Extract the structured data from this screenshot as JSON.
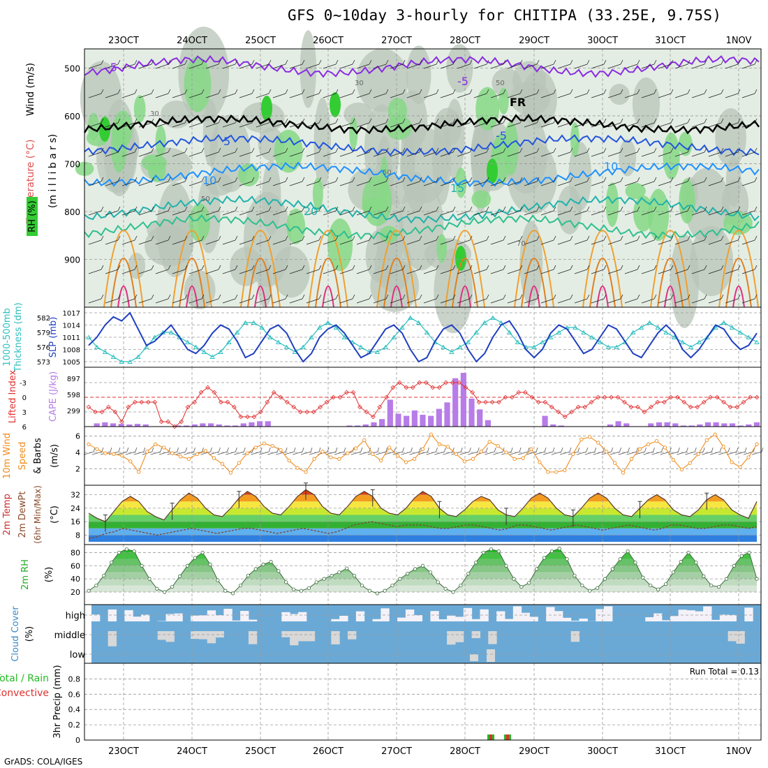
{
  "header": {
    "title": "GFS 0~10day 3-hourly for CHITIPA (33.25E, 9.75S)",
    "credit": "GrADS: COLA/IGES"
  },
  "colors": {
    "rh_green": "#33cc33",
    "rh_gray": "#a8b8a8",
    "slp": "#1f3fbf",
    "thickness": "#2fbfbf",
    "lifted_index": "#e03030",
    "cape": "#b77ce8",
    "wind_speed": "#f08c1a",
    "cloud_blue": "#6aa9d6",
    "cloud_white": "#f4f2f8",
    "cloud_gray": "#d8d8d8",
    "precip_total": "#22bb22",
    "precip_conv": "#e03030"
  },
  "chart_data": [
    {
      "id": "upper-air",
      "type": "heatmap",
      "ylabels": [
        "Temperature (°C)",
        "Wind (m/s)",
        "(m i l l i b a r s)",
        "RH (%)"
      ],
      "x_ticks": [
        "23OCT",
        "24OCT",
        "25OCT",
        "26OCT",
        "27OCT",
        "28OCT",
        "29OCT",
        "30OCT",
        "31OCT",
        "1NOV"
      ],
      "y_ticks": [
        500,
        600,
        700,
        800,
        900
      ],
      "ylim": [
        1000,
        460
      ],
      "contour_labels": [
        "-5",
        "-5",
        "5",
        "-5",
        "10",
        "10",
        "15",
        "20",
        "FR"
      ],
      "rh_labels": [
        "30",
        "30",
        "50",
        "50",
        "50",
        "70"
      ],
      "grid": true
    },
    {
      "id": "slp-thickness",
      "type": "line",
      "ylabels": [
        "1000-500mb",
        "Thickness (dm)",
        "SLP (mb)"
      ],
      "left_ticks": [
        573,
        576,
        579,
        582
      ],
      "right_ticks": [
        1005,
        1008,
        1011,
        1014,
        1017
      ],
      "series": [
        {
          "name": "SLP (mb)",
          "values": [
            1009,
            1011,
            1014,
            1016,
            1015,
            1017,
            1013,
            1009,
            1010,
            1012,
            1014,
            1011,
            1008,
            1007,
            1009,
            1012,
            1014,
            1013,
            1010,
            1006,
            1007,
            1010,
            1013,
            1014,
            1012,
            1008,
            1005,
            1007,
            1011,
            1013,
            1014,
            1012,
            1009,
            1006,
            1007,
            1010,
            1013,
            1014,
            1012,
            1008,
            1005,
            1006,
            1010,
            1013,
            1014,
            1012,
            1008,
            1005,
            1007,
            1011,
            1014,
            1015,
            1012,
            1008,
            1006,
            1008,
            1012,
            1014,
            1013,
            1010,
            1007,
            1008,
            1011,
            1014,
            1013,
            1010,
            1007,
            1006,
            1009,
            1012,
            1014,
            1012,
            1008,
            1006,
            1008,
            1011,
            1014,
            1013,
            1010,
            1008,
            1009,
            1012
          ]
        },
        {
          "name": "Thickness (dm)",
          "values": [
            578,
            576,
            575,
            574,
            573,
            573,
            574,
            576,
            578,
            579,
            579,
            578,
            577,
            576,
            575,
            574,
            575,
            577,
            579,
            581,
            581,
            580,
            578,
            577,
            576,
            575,
            576,
            578,
            580,
            581,
            580,
            578,
            577,
            576,
            575,
            575,
            576,
            578,
            580,
            582,
            581,
            579,
            577,
            576,
            575,
            576,
            577,
            579,
            581,
            582,
            581,
            579,
            577,
            576,
            576,
            577,
            578,
            579,
            580,
            580,
            579,
            578,
            577,
            576,
            576,
            577,
            579,
            580,
            581,
            580,
            579,
            578,
            577,
            576,
            577,
            578,
            580,
            581,
            580,
            579,
            578,
            577
          ]
        }
      ]
    },
    {
      "id": "lifted-index-cape",
      "type": "bar",
      "ylabels": [
        "Lifted Index",
        "CAPE (J/kg)"
      ],
      "left_ticks": [
        "-3",
        "0",
        "3",
        "6"
      ],
      "right_ticks": [
        299,
        598,
        897
      ],
      "series": [
        {
          "name": "Lifted Index",
          "values": [
            2,
            3,
            3,
            2,
            3,
            5,
            2,
            1,
            1,
            1,
            1,
            5,
            5,
            6,
            5,
            2,
            1,
            -1,
            -2,
            -1,
            1,
            1,
            2,
            4,
            4,
            4,
            3,
            1,
            -1,
            0,
            1,
            2,
            3,
            3,
            3,
            2,
            1,
            0,
            0,
            -1,
            -1,
            2,
            3,
            4,
            2,
            0,
            -2,
            -3,
            -2,
            -2,
            -3,
            -3,
            -2,
            -2,
            -3,
            -3,
            -3,
            -2,
            -1,
            1,
            1,
            1,
            1,
            0,
            0,
            -1,
            -1,
            0,
            1,
            1,
            2,
            3,
            4,
            3,
            2,
            2,
            1,
            0,
            0,
            0,
            0,
            1,
            2,
            2,
            3,
            2,
            1,
            1,
            0,
            0,
            1,
            2,
            2,
            1,
            0,
            0,
            1,
            2,
            2,
            1,
            0,
            0
          ]
        },
        {
          "name": "CAPE (J/kg)",
          "values": [
            0,
            60,
            80,
            60,
            50,
            40,
            50,
            40,
            0,
            0,
            0,
            20,
            20,
            40,
            60,
            60,
            40,
            20,
            20,
            60,
            80,
            100,
            100,
            0,
            0,
            0,
            0,
            0,
            0,
            0,
            0,
            0,
            20,
            20,
            40,
            80,
            140,
            500,
            240,
            200,
            300,
            220,
            200,
            330,
            450,
            900,
            1000,
            520,
            320,
            120,
            0,
            0,
            0,
            0,
            0,
            0,
            200,
            40,
            20,
            0,
            0,
            0,
            0,
            0,
            40,
            100,
            60,
            0,
            0,
            60,
            80,
            80,
            60,
            20,
            20,
            40,
            80,
            80,
            60,
            60,
            20,
            40,
            80
          ]
        }
      ]
    },
    {
      "id": "wind-10m",
      "type": "line",
      "ylabels": [
        "10m Wind",
        "Speed",
        "& Barbs",
        "(m/s)"
      ],
      "left_ticks": [
        2,
        4,
        6
      ],
      "series": [
        {
          "name": "Speed",
          "values": [
            5,
            4.4,
            3.9,
            3.8,
            3.6,
            2.9,
            1.6,
            4.1,
            5,
            4.6,
            3.9,
            3.5,
            3.2,
            3.8,
            4.2,
            3.3,
            2.6,
            1.5,
            2.7,
            3.9,
            4.6,
            5.1,
            4.8,
            4.3,
            3,
            2.1,
            1.6,
            3.2,
            4.1,
            3.4,
            3.2,
            3.9,
            4.5,
            5.5,
            3.8,
            3,
            4.6,
            3.6,
            2.8,
            3.2,
            4.4,
            6.2,
            5,
            4.7,
            3.8,
            2.9,
            3.2,
            4.1,
            5.3,
            4.8,
            4,
            3.2,
            3.3,
            4.4,
            2.8,
            1.6,
            1.6,
            1.8,
            3.8,
            5.6,
            5.9,
            5.2,
            4.1,
            2.7,
            1.5,
            3.2,
            4.4,
            5,
            5.4,
            4.6,
            3.1,
            1.9,
            2.7,
            3.8,
            5.5,
            6.2,
            4.7,
            2.8,
            2.2,
            3.4,
            5
          ]
        }
      ]
    },
    {
      "id": "temp-2m",
      "type": "area",
      "ylabels": [
        "2m Temp",
        "2m DewPt",
        "(6hr Min/Max)",
        "(°C)"
      ],
      "left_ticks": [
        8,
        16,
        24,
        32
      ],
      "series": [
        {
          "name": "2m Temp",
          "values": [
            21,
            18,
            16,
            22,
            28,
            31,
            28,
            22,
            19,
            17,
            23,
            29,
            33,
            30,
            24,
            20,
            19,
            24,
            30,
            34,
            31,
            25,
            21,
            20,
            25,
            31,
            35,
            32,
            25,
            21,
            20,
            25,
            31,
            34,
            31,
            24,
            21,
            20,
            24,
            30,
            34,
            31,
            24,
            20,
            19,
            23,
            28,
            31,
            29,
            23,
            20,
            19,
            24,
            30,
            33,
            30,
            24,
            20,
            19,
            24,
            30,
            33,
            30,
            24,
            20,
            19,
            24,
            29,
            32,
            29,
            23,
            20,
            19,
            23,
            29,
            32,
            29,
            23,
            20,
            18,
            28
          ]
        },
        {
          "name": "2m DewPt",
          "values": [
            6,
            7,
            9,
            10,
            12,
            11,
            10,
            9,
            8,
            9,
            10,
            11,
            12,
            11,
            10,
            9,
            10,
            11,
            12,
            12,
            11,
            10,
            9,
            10,
            11,
            12,
            11,
            10,
            9,
            10,
            12,
            14,
            15,
            16,
            15,
            14,
            13,
            14,
            14,
            14,
            13,
            12,
            12,
            13,
            14,
            14,
            13,
            12,
            11,
            12,
            14,
            14,
            13,
            12,
            11,
            12,
            13,
            14,
            13,
            12,
            11,
            12,
            13,
            14,
            13,
            12,
            11,
            12,
            14,
            14,
            13,
            12,
            12,
            13,
            14,
            14,
            13,
            12,
            13
          ]
        }
      ]
    },
    {
      "id": "rh-2m",
      "type": "area",
      "ylabels": [
        "2m RH",
        "(%)"
      ],
      "left_ticks": [
        20,
        40,
        60,
        80
      ],
      "series": [
        {
          "name": "2m RH",
          "values": [
            22,
            30,
            45,
            65,
            80,
            85,
            82,
            60,
            40,
            25,
            20,
            28,
            44,
            60,
            72,
            80,
            62,
            38,
            22,
            18,
            30,
            45,
            55,
            62,
            66,
            52,
            35,
            24,
            22,
            26,
            35,
            40,
            45,
            50,
            56,
            45,
            30,
            22,
            18,
            22,
            30,
            40,
            48,
            55,
            60,
            50,
            35,
            25,
            20,
            30,
            48,
            65,
            80,
            85,
            82,
            60,
            40,
            28,
            34,
            55,
            72,
            82,
            86,
            70,
            45,
            30,
            22,
            26,
            40,
            55,
            70,
            82,
            65,
            42,
            30,
            24,
            32,
            50,
            66,
            80,
            65,
            44,
            30,
            28,
            40,
            60,
            75,
            80,
            40
          ]
        }
      ]
    },
    {
      "id": "cloud-cover",
      "type": "heatmap",
      "ylabels": [
        "Cloud Cover",
        "(%)"
      ],
      "categories": [
        "high",
        "middle",
        "low"
      ]
    },
    {
      "id": "precip",
      "type": "bar",
      "ylabels": [
        "Total / Rain",
        "Convective",
        "3hr Precip (mm)"
      ],
      "left_ticks": [
        0,
        0.2,
        0.4,
        0.6,
        0.8
      ],
      "run_total": "Run Total = 0.13",
      "series": [
        {
          "name": "Total / Rain",
          "values": [
            0.01,
            0.01
          ]
        },
        {
          "name": "Convective",
          "values": [
            0.01,
            0.01
          ]
        }
      ]
    }
  ],
  "bottom_axis": {
    "ticks": [
      "23OCT",
      "24OCT",
      "25OCT",
      "26OCT",
      "27OCT",
      "28OCT",
      "29OCT",
      "30OCT",
      "31OCT",
      "1NOV"
    ]
  }
}
